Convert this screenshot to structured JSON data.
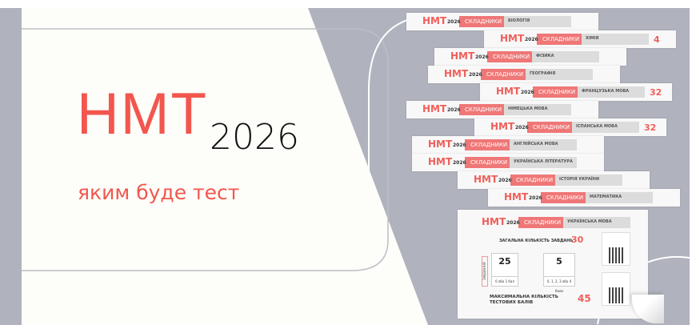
{
  "hero": {
    "title": "НМТ",
    "year": "2026",
    "subtitle": "яким буде тест"
  },
  "colors": {
    "accent": "#f2564e",
    "panel": "#fdfdf9",
    "gray": "#b0b3bd"
  },
  "card_common": {
    "logo": "НМТ",
    "logo_year": "2026",
    "badge": "СКЛАДНИКИ",
    "total_label": "ЗАГАЛЬНА КІЛЬКІСТЬ ЗАВДАНЬ"
  },
  "cards": [
    {
      "subject": "БІОЛОГІЯ"
    },
    {
      "subject": "ХІМІЯ",
      "number": "4"
    },
    {
      "subject": "ФІЗИКА"
    },
    {
      "subject": "ГЕОГРАФІЯ"
    },
    {
      "subject": "ФРАНЦУЗЬКА МОВА",
      "number": "32"
    },
    {
      "subject": "НІМЕЦЬКА МОВА"
    },
    {
      "subject": "ІСПАНСЬКА МОВА",
      "number": "32"
    },
    {
      "subject": "АНГЛІЙСЬКА МОВА"
    },
    {
      "subject": "УКРАЇНСЬКА ЛІТЕРАТУРА"
    },
    {
      "subject": "ІСТОРІЯ УКРАЇНИ"
    },
    {
      "subject": "МАТЕМАТИКА"
    }
  ],
  "front_card": {
    "subject": "УКРАЇНСЬКА МОВА",
    "total_tasks": "30",
    "tasks_label": "ЗАВДАННЯ",
    "box1": {
      "value": "25",
      "foot": "0 або 1 бал"
    },
    "box2": {
      "value": "5",
      "foot": "0, 1, 2, 3 або 4 бали"
    },
    "max_label_1": "МАКСИМАЛЬНА КІЛЬКІСТЬ",
    "max_label_2": "ТЕСТОВИХ БАЛІВ",
    "max_points": "45"
  }
}
